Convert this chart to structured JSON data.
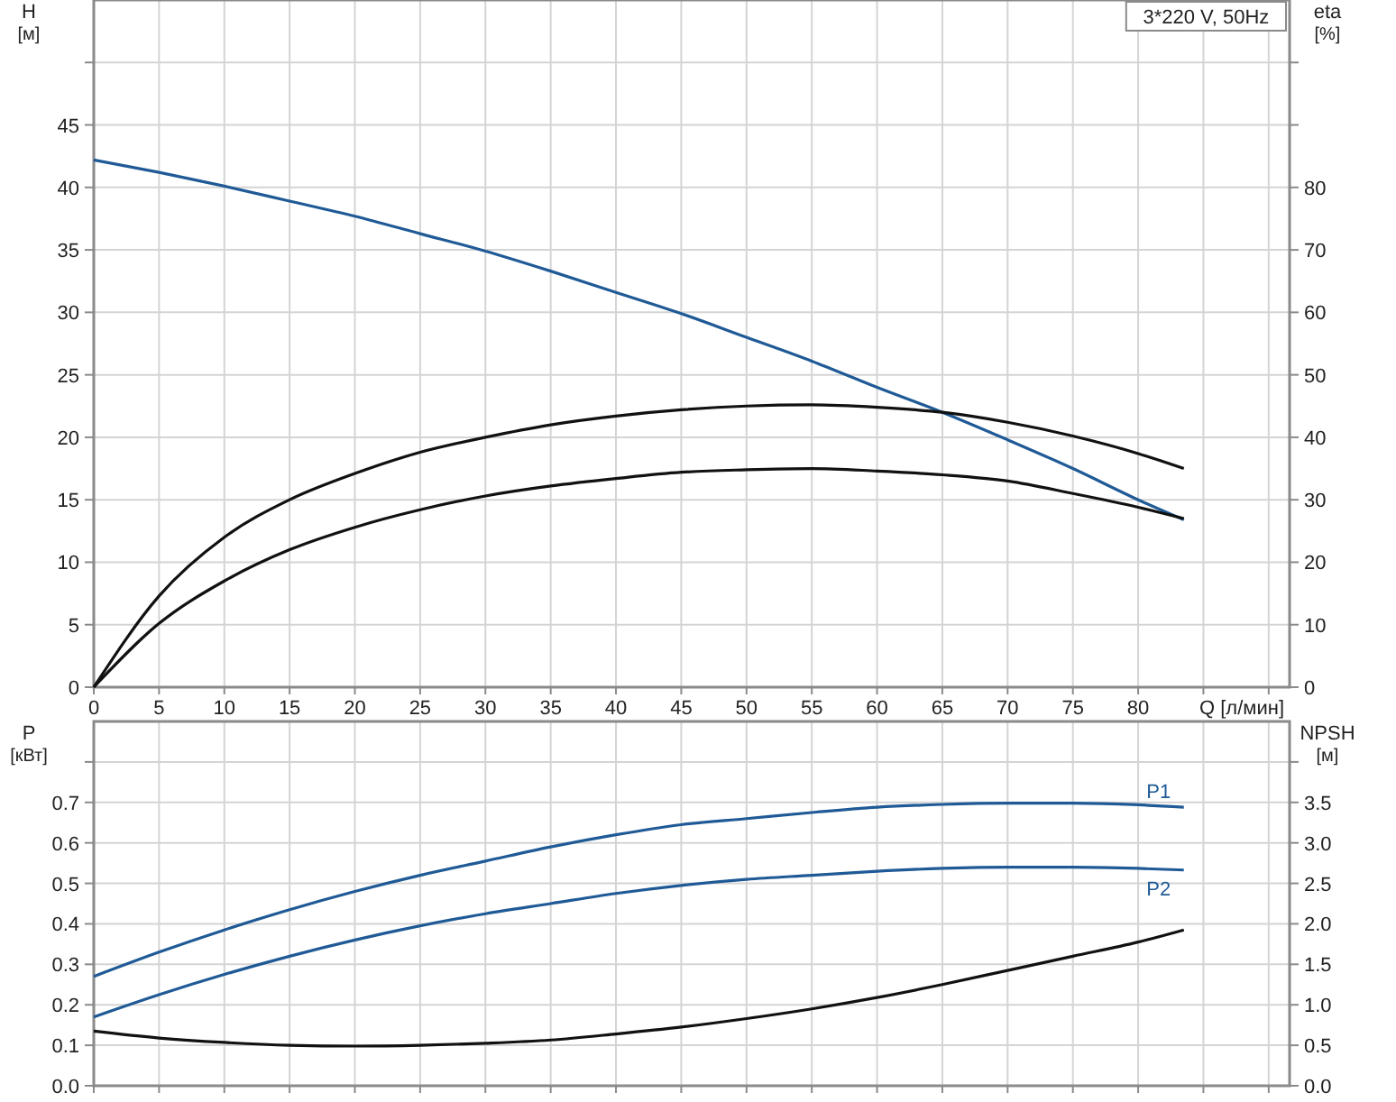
{
  "chart_data": [
    {
      "type": "line",
      "title": "3*220 V, 50Hz",
      "xlabel": "Q [л/мин]",
      "ylabel": "H [м]",
      "y2label": "eta [%]",
      "grid": true,
      "legend": false,
      "marker": "none",
      "line_style": "solid",
      "x": [
        0,
        5,
        10,
        15,
        20,
        25,
        30,
        35,
        40,
        45,
        50,
        55,
        60,
        65,
        70,
        75,
        80,
        83.5
      ],
      "xlim": [
        0,
        91.6
      ],
      "xticks": [
        0,
        5,
        10,
        15,
        20,
        25,
        30,
        35,
        40,
        45,
        50,
        55,
        60,
        65,
        70,
        75,
        80,
        {
          "value": 85,
          "label": null
        },
        {
          "value": 90,
          "label": null
        }
      ],
      "ylim": [
        0,
        55
      ],
      "yticks": [
        0,
        5,
        10,
        15,
        20,
        25,
        30,
        35,
        40,
        45,
        {
          "value": 50,
          "label": null
        }
      ],
      "y2lim": [
        0,
        110
      ],
      "y2ticks": [
        0,
        10,
        20,
        30,
        40,
        50,
        60,
        70,
        80,
        {
          "value": 90,
          "label": null
        },
        {
          "value": 100,
          "label": null
        }
      ],
      "series": [
        {
          "color": "#1f5a96",
          "values": [
            42.2,
            41.2,
            40.1,
            38.9,
            37.7,
            36.3,
            34.9,
            33.3,
            31.6,
            29.9,
            28.0,
            26.1,
            24.0,
            22.0,
            19.8,
            17.5,
            15.0,
            13.4
          ]
        },
        {
          "color": "#111111",
          "axis": "y2",
          "values": [
            0,
            14.6,
            24,
            30,
            34.2,
            37.6,
            40,
            42,
            43.4,
            44.4,
            45,
            45.2,
            44.8,
            44,
            42.4,
            40.2,
            37.4,
            35
          ]
        },
        {
          "color": "#111111",
          "axis": "y2",
          "values": [
            0,
            10.2,
            17,
            22,
            25.6,
            28.4,
            30.6,
            32.2,
            33.4,
            34.4,
            34.8,
            35,
            34.6,
            34,
            33,
            31,
            28.8,
            27
          ]
        }
      ]
    },
    {
      "type": "line",
      "ylabel": "P [кВт]",
      "y2label": "NPSH [м]",
      "grid": true,
      "legend": false,
      "marker": "none",
      "line_style": "solid",
      "tick_labels": "y",
      "x": [
        0,
        5,
        10,
        15,
        20,
        25,
        30,
        35,
        40,
        45,
        50,
        55,
        60,
        65,
        70,
        75,
        80,
        83.5
      ],
      "xlim": [
        0,
        91.6
      ],
      "xticks": [
        0,
        5,
        10,
        15,
        20,
        25,
        30,
        35,
        40,
        45,
        50,
        55,
        60,
        65,
        70,
        75,
        80,
        85,
        90
      ],
      "ylim": [
        0,
        0.9
      ],
      "yticks": [
        {
          "value": 0,
          "label": "0.0"
        },
        0.1,
        0.2,
        0.3,
        0.4,
        0.5,
        0.6,
        0.7,
        {
          "value": 0.8,
          "label": null
        }
      ],
      "y2lim": [
        0,
        4.5
      ],
      "y2ticks": [
        {
          "value": 0,
          "label": "0.0"
        },
        0.5,
        {
          "value": 1,
          "label": "1.0"
        },
        1.5,
        {
          "value": 2,
          "label": "2.0"
        },
        2.5,
        {
          "value": 3,
          "label": "3.0"
        },
        3.5,
        {
          "value": 4,
          "label": null
        }
      ],
      "series": [
        {
          "name": "P1",
          "color": "#1f5a96",
          "values": [
            0.27,
            0.33,
            0.385,
            0.435,
            0.48,
            0.52,
            0.555,
            0.59,
            0.62,
            0.645,
            0.66,
            0.675,
            0.688,
            0.695,
            0.698,
            0.698,
            0.694,
            0.688
          ]
        },
        {
          "name": "P2",
          "color": "#1f5a96",
          "values": [
            0.17,
            0.225,
            0.275,
            0.32,
            0.36,
            0.395,
            0.425,
            0.45,
            0.475,
            0.495,
            0.51,
            0.52,
            0.53,
            0.537,
            0.54,
            0.54,
            0.537,
            0.533
          ]
        },
        {
          "color": "#111111",
          "axis": "y2",
          "values": [
            0.675,
            0.59,
            0.535,
            0.5,
            0.49,
            0.5,
            0.525,
            0.565,
            0.64,
            0.725,
            0.83,
            0.95,
            1.09,
            1.25,
            1.425,
            1.6,
            1.775,
            1.925
          ]
        }
      ]
    }
  ]
}
